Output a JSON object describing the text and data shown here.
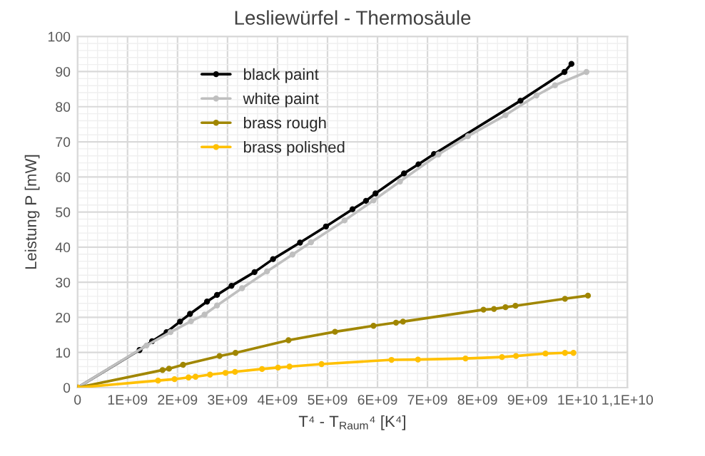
{
  "chart_data": {
    "type": "line",
    "title": "Lesliewürfel - Thermosäule",
    "xlabel": "T⁴ - T$_{Raum}$⁴ [K⁴]",
    "ylabel": "Leistung P [mW]",
    "xlim": [
      0,
      11000000000.0
    ],
    "xticks": [
      0,
      {
        "value": 1000000000.0,
        "label": "1E+09"
      },
      {
        "value": 2000000000.0,
        "label": "2E+09"
      },
      {
        "value": 3000000000.0,
        "label": "3E+09"
      },
      {
        "value": 4000000000.0,
        "label": "4E+09"
      },
      {
        "value": 5000000000.0,
        "label": "5E+09"
      },
      {
        "value": 6000000000.0,
        "label": "6E+09"
      },
      {
        "value": 7000000000.0,
        "label": "7E+09"
      },
      {
        "value": 8000000000.0,
        "label": "8E+09"
      },
      {
        "value": 9000000000.0,
        "label": "9E+09"
      },
      {
        "value": 10000000000.0,
        "label": "1E+10"
      },
      {
        "value": 11000000000.0,
        "label": "1,1E+10"
      }
    ],
    "ylim": [
      0,
      100
    ],
    "yticks": [
      0,
      10,
      20,
      30,
      40,
      50,
      60,
      70,
      80,
      90,
      100
    ],
    "grid": true,
    "legend": "top left",
    "marker": "circle",
    "line_style": "solid",
    "series": [
      {
        "name": "black paint",
        "color": "#000000",
        "x": [
          0,
          1240000000.0,
          1490000000.0,
          1780000000.0,
          2050000000.0,
          2250000000.0,
          2590000000.0,
          2790000000.0,
          3080000000.0,
          3540000000.0,
          3910000000.0,
          4450000000.0,
          4970000000.0,
          5500000000.0,
          5770000000.0,
          5960000000.0,
          6530000000.0,
          6820000000.0,
          7130000000.0,
          8860000000.0,
          9740000000.0,
          9880000000.0
        ],
        "values": [
          0,
          10.7,
          13.2,
          15.8,
          18.8,
          21.0,
          24.5,
          26.4,
          29.0,
          32.9,
          36.6,
          41.3,
          45.9,
          50.8,
          53.2,
          55.3,
          61.0,
          63.6,
          66.5,
          81.7,
          89.9,
          92.2
        ]
      },
      {
        "name": "white paint",
        "color": "#bfbfbf",
        "x": [
          0,
          1380000000.0,
          1860000000.0,
          2270000000.0,
          2540000000.0,
          2790000000.0,
          3290000000.0,
          3790000000.0,
          4300000000.0,
          4670000000.0,
          5340000000.0,
          5920000000.0,
          6450000000.0,
          7220000000.0,
          7810000000.0,
          8560000000.0,
          9180000000.0,
          9550000000.0,
          10180000000.0
        ],
        "values": [
          0,
          12.0,
          15.8,
          18.9,
          20.8,
          23.4,
          28.3,
          33.1,
          37.9,
          41.4,
          47.6,
          53.3,
          58.7,
          66.4,
          71.6,
          77.6,
          83.2,
          86.1,
          89.9
        ]
      },
      {
        "name": "brass rough",
        "color": "#a08600",
        "x": [
          0,
          1700000000.0,
          1830000000.0,
          2110000000.0,
          2840000000.0,
          3160000000.0,
          4220000000.0,
          5150000000.0,
          5920000000.0,
          6370000000.0,
          6510000000.0,
          8120000000.0,
          8330000000.0,
          8560000000.0,
          8760000000.0,
          9750000000.0,
          10210000000.0
        ],
        "values": [
          0,
          5.0,
          5.4,
          6.5,
          9.0,
          9.9,
          13.5,
          15.9,
          17.6,
          18.5,
          18.8,
          22.2,
          22.4,
          22.9,
          23.3,
          25.3,
          26.2
        ]
      },
      {
        "name": "brass polished",
        "color": "#ffc000",
        "x": [
          0,
          1610000000.0,
          1940000000.0,
          2220000000.0,
          2360000000.0,
          2650000000.0,
          2960000000.0,
          3150000000.0,
          3690000000.0,
          4010000000.0,
          4240000000.0,
          4880000000.0,
          6280000000.0,
          6810000000.0,
          7760000000.0,
          8490000000.0,
          8770000000.0,
          9360000000.0,
          9750000000.0,
          9920000000.0
        ],
        "values": [
          0,
          2.0,
          2.4,
          2.9,
          3.1,
          3.7,
          4.2,
          4.5,
          5.3,
          5.7,
          6.0,
          6.7,
          7.9,
          8.0,
          8.3,
          8.7,
          9.0,
          9.7,
          9.9,
          9.9
        ]
      }
    ]
  }
}
